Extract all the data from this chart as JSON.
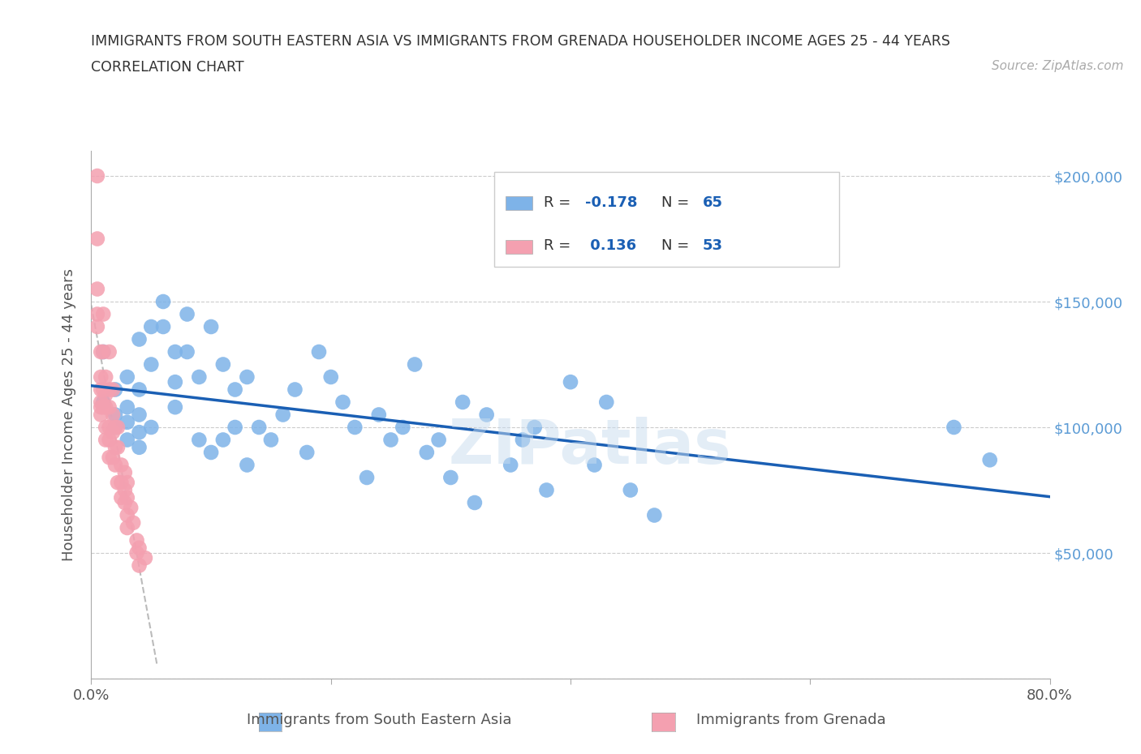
{
  "title_line1": "IMMIGRANTS FROM SOUTH EASTERN ASIA VS IMMIGRANTS FROM GRENADA HOUSEHOLDER INCOME AGES 25 - 44 YEARS",
  "title_line2": "CORRELATION CHART",
  "source_text": "Source: ZipAtlas.com",
  "ylabel": "Householder Income Ages 25 - 44 years",
  "watermark": "ZIPatlas",
  "legend1_label": "Immigrants from South Eastern Asia",
  "legend2_label": "Immigrants from Grenada",
  "R1": -0.178,
  "N1": 65,
  "R2": 0.136,
  "N2": 53,
  "color_blue": "#7EB3E8",
  "color_blue_dark": "#1A5FB4",
  "color_pink": "#F4A0B0",
  "color_axis_right": "#5B9BD5",
  "xlim": [
    0.0,
    0.8
  ],
  "ylim": [
    0,
    210000
  ],
  "yticks": [
    0,
    50000,
    100000,
    150000,
    200000
  ],
  "xtick_positions": [
    0.0,
    0.2,
    0.4,
    0.6,
    0.8
  ],
  "blue_x": [
    0.02,
    0.01,
    0.01,
    0.02,
    0.02,
    0.03,
    0.03,
    0.03,
    0.03,
    0.04,
    0.04,
    0.04,
    0.04,
    0.04,
    0.05,
    0.05,
    0.05,
    0.06,
    0.06,
    0.07,
    0.07,
    0.07,
    0.08,
    0.08,
    0.09,
    0.09,
    0.1,
    0.1,
    0.11,
    0.11,
    0.12,
    0.12,
    0.13,
    0.13,
    0.14,
    0.15,
    0.16,
    0.17,
    0.18,
    0.19,
    0.2,
    0.21,
    0.22,
    0.23,
    0.24,
    0.25,
    0.26,
    0.27,
    0.28,
    0.29,
    0.3,
    0.31,
    0.32,
    0.33,
    0.35,
    0.36,
    0.37,
    0.38,
    0.4,
    0.42,
    0.43,
    0.45,
    0.47,
    0.72,
    0.75
  ],
  "blue_y": [
    115000,
    130000,
    110000,
    105000,
    100000,
    120000,
    108000,
    95000,
    102000,
    135000,
    115000,
    105000,
    98000,
    92000,
    140000,
    125000,
    100000,
    150000,
    140000,
    130000,
    118000,
    108000,
    145000,
    130000,
    120000,
    95000,
    140000,
    90000,
    125000,
    95000,
    115000,
    100000,
    120000,
    85000,
    100000,
    95000,
    105000,
    115000,
    90000,
    130000,
    120000,
    110000,
    100000,
    80000,
    105000,
    95000,
    100000,
    125000,
    90000,
    95000,
    80000,
    110000,
    70000,
    105000,
    85000,
    95000,
    100000,
    75000,
    118000,
    85000,
    110000,
    75000,
    65000,
    100000,
    87000
  ],
  "pink_x": [
    0.005,
    0.005,
    0.005,
    0.005,
    0.005,
    0.008,
    0.008,
    0.008,
    0.008,
    0.008,
    0.008,
    0.01,
    0.01,
    0.01,
    0.01,
    0.012,
    0.012,
    0.012,
    0.012,
    0.012,
    0.015,
    0.015,
    0.015,
    0.015,
    0.015,
    0.015,
    0.018,
    0.018,
    0.018,
    0.018,
    0.02,
    0.02,
    0.02,
    0.022,
    0.022,
    0.022,
    0.025,
    0.025,
    0.025,
    0.028,
    0.028,
    0.028,
    0.03,
    0.03,
    0.03,
    0.03,
    0.033,
    0.035,
    0.038,
    0.038,
    0.04,
    0.04,
    0.045
  ],
  "pink_y": [
    200000,
    175000,
    155000,
    145000,
    140000,
    130000,
    120000,
    115000,
    110000,
    108000,
    105000,
    145000,
    130000,
    115000,
    108000,
    120000,
    113000,
    108000,
    100000,
    95000,
    130000,
    115000,
    108000,
    100000,
    95000,
    88000,
    115000,
    105000,
    98000,
    88000,
    100000,
    92000,
    85000,
    100000,
    92000,
    78000,
    85000,
    78000,
    72000,
    82000,
    75000,
    70000,
    78000,
    72000,
    65000,
    60000,
    68000,
    62000,
    55000,
    50000,
    52000,
    45000,
    48000
  ],
  "bg_color": "#FFFFFF",
  "grid_color": "#CCCCCC",
  "title_color": "#333333"
}
